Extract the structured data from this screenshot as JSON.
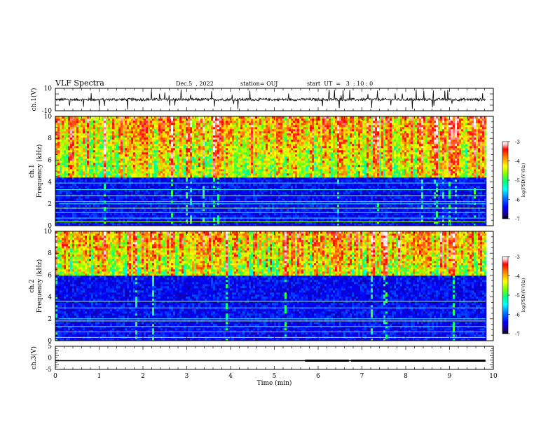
{
  "header": {
    "title": "VLF Spectra",
    "date": "Dec.5  , 2022",
    "station": "station= OUJ",
    "start": "start  UT  =   3  : 10 : 0"
  },
  "chart_data": [
    {
      "type": "line",
      "ylabel": "ch.1(V)",
      "ylim": [
        -10,
        10
      ],
      "yticks": [
        "10",
        "-10"
      ],
      "x": [
        0,
        9.82
      ],
      "description_values": {
        "baseline_v": 0,
        "noise_amplitude_v": 2,
        "spike_amplitude_v": 9
      }
    },
    {
      "type": "heatmap",
      "ylabel_top": "ch.1",
      "ylabel": "Frequency  (kHz)",
      "ylim": [
        0,
        10
      ],
      "yticks": [
        "0",
        "2",
        "4",
        "6",
        "8",
        "10"
      ],
      "colorbar": {
        "label": "log(PSD)(V²/Hz)",
        "range": [
          -7,
          -3
        ],
        "ticks": [
          "-3",
          "-4",
          "-5",
          "-6",
          "-7"
        ]
      },
      "low_band_top_khz": 4.5,
      "hum_lines_khz": [
        0.35,
        0.7,
        1.2,
        1.6,
        2.0,
        2.2,
        2.75,
        3.3,
        3.9
      ]
    },
    {
      "type": "heatmap",
      "ylabel_top": "ch.2",
      "ylabel": "Frequency  (kHz)",
      "ylim": [
        0,
        10
      ],
      "yticks": [
        "0",
        "2",
        "4",
        "6",
        "8",
        "10"
      ],
      "colorbar": {
        "label": "log(PSD)(V²/Hz)",
        "range": [
          -7,
          -3
        ],
        "ticks": [
          "-3",
          "-4",
          "-5",
          "-6",
          "-7"
        ]
      },
      "low_band_top_khz": 6,
      "hum_lines_khz": [
        0.3,
        0.8,
        1.3,
        1.8,
        2.0,
        3.0,
        3.6
      ]
    },
    {
      "type": "line",
      "ylabel": "ch.3(V)",
      "ylim": [
        -5,
        5
      ],
      "yticks": [
        "5",
        "0",
        "-5"
      ],
      "x": [
        0,
        9.82
      ],
      "description_values": {
        "level_v": -1.2
      }
    }
  ],
  "xaxis": {
    "label": "Time  (min)",
    "range": [
      0,
      10
    ],
    "ticks": [
      "0",
      "1",
      "2",
      "3",
      "4",
      "5",
      "6",
      "7",
      "8",
      "9",
      "10"
    ]
  },
  "colors": {
    "colormap": [
      "#000000",
      "#1a0080",
      "#0000ff",
      "#0080ff",
      "#00ffff",
      "#00ff80",
      "#80ff00",
      "#ffff00",
      "#ff8000",
      "#ff0000",
      "#ffc0c0",
      "#ffffff"
    ]
  }
}
